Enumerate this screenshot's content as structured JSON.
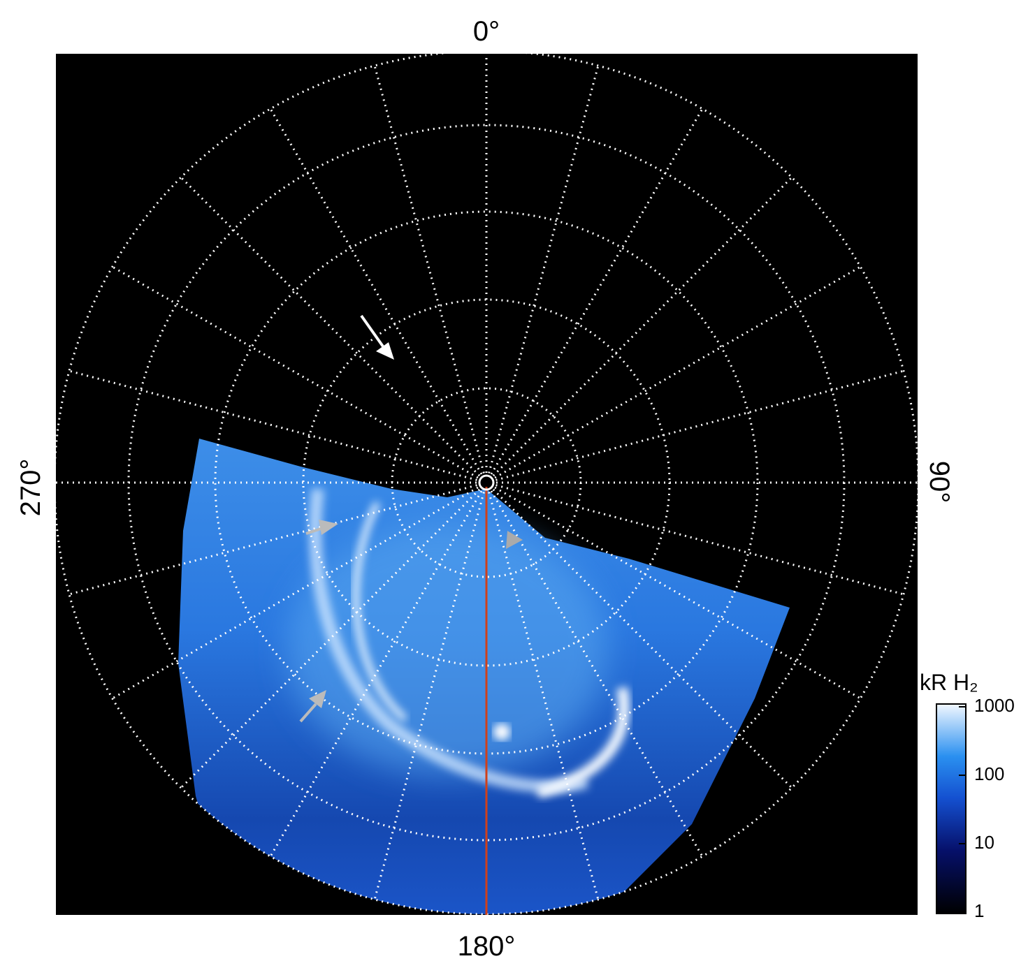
{
  "labels": {
    "top": "0°",
    "right": "90°",
    "bottom": "180°",
    "left": "270°"
  },
  "colorbar": {
    "title": "kR H₂",
    "scale": "log",
    "lim": [
      1,
      1000
    ],
    "ticks": [
      1,
      10,
      100,
      1000
    ]
  }
}
